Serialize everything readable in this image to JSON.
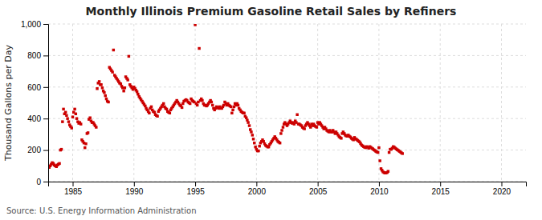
{
  "chart_data": {
    "type": "scatter",
    "title": "Monthly Illinois Premium Gasoline Retail Sales by Refiners",
    "ylabel": "Thousand Gallons per Day",
    "annotations": [
      "Source: U.S. Energy Information Administration"
    ],
    "color": "#cc0000",
    "marker": "square",
    "grid": true,
    "xlim": [
      1983,
      2022
    ],
    "ylim": [
      0,
      1000
    ],
    "xticks": [
      1985,
      1990,
      1995,
      2000,
      2005,
      2010,
      2015,
      2020
    ],
    "yticks": [
      0,
      200,
      400,
      600,
      800,
      {
        "value": 1000,
        "label": "1,000"
      }
    ],
    "x": [
      1983.08,
      1983.17,
      1983.25,
      1983.33,
      1983.42,
      1983.5,
      1983.58,
      1983.67,
      1983.75,
      1983.83,
      1983.92,
      1984.0,
      1984.08,
      1984.17,
      1984.25,
      1984.33,
      1984.42,
      1984.5,
      1984.58,
      1984.67,
      1984.75,
      1984.83,
      1984.92,
      1985.0,
      1985.08,
      1985.17,
      1985.25,
      1985.33,
      1985.42,
      1985.5,
      1985.58,
      1985.67,
      1985.75,
      1985.83,
      1985.92,
      1986.0,
      1986.08,
      1986.17,
      1986.25,
      1986.33,
      1986.42,
      1986.5,
      1986.58,
      1986.67,
      1986.75,
      1986.83,
      1986.92,
      1987.0,
      1987.08,
      1987.17,
      1987.25,
      1987.33,
      1987.42,
      1987.5,
      1987.58,
      1987.67,
      1987.75,
      1987.83,
      1987.92,
      1988.0,
      1988.08,
      1988.17,
      1988.25,
      1988.33,
      1988.42,
      1988.5,
      1988.58,
      1988.67,
      1988.75,
      1988.83,
      1988.92,
      1989.0,
      1989.08,
      1989.17,
      1989.25,
      1989.33,
      1989.42,
      1989.5,
      1989.58,
      1989.67,
      1989.75,
      1989.83,
      1989.92,
      1990.0,
      1990.08,
      1990.17,
      1990.25,
      1990.33,
      1990.42,
      1990.5,
      1990.58,
      1990.67,
      1990.75,
      1990.83,
      1990.92,
      1991.0,
      1991.08,
      1991.17,
      1991.25,
      1991.33,
      1991.42,
      1991.5,
      1991.58,
      1991.67,
      1991.75,
      1991.83,
      1991.92,
      1992.0,
      1992.08,
      1992.17,
      1992.25,
      1992.33,
      1992.42,
      1992.5,
      1992.58,
      1992.67,
      1992.75,
      1992.83,
      1992.92,
      1993.0,
      1993.08,
      1993.17,
      1993.25,
      1993.33,
      1993.42,
      1993.5,
      1993.58,
      1993.67,
      1993.75,
      1993.83,
      1993.92,
      1994.0,
      1994.08,
      1994.17,
      1994.25,
      1994.33,
      1994.42,
      1994.5,
      1994.58,
      1994.67,
      1994.75,
      1994.83,
      1994.92,
      1995.0,
      1995.08,
      1995.17,
      1995.25,
      1995.33,
      1995.42,
      1995.5,
      1995.58,
      1995.67,
      1995.75,
      1995.83,
      1995.92,
      1996.0,
      1996.08,
      1996.17,
      1996.25,
      1996.33,
      1996.42,
      1996.5,
      1996.58,
      1996.67,
      1996.75,
      1996.83,
      1996.92,
      1997.0,
      1997.08,
      1997.17,
      1997.25,
      1997.33,
      1997.42,
      1997.5,
      1997.58,
      1997.67,
      1997.75,
      1997.83,
      1997.92,
      1998.0,
      1998.08,
      1998.17,
      1998.25,
      1998.33,
      1998.42,
      1998.5,
      1998.58,
      1998.67,
      1998.75,
      1998.83,
      1998.92,
      1999.0,
      1999.08,
      1999.17,
      1999.25,
      1999.33,
      1999.42,
      1999.5,
      1999.58,
      1999.67,
      1999.75,
      1999.83,
      1999.92,
      2000.0,
      2000.08,
      2000.17,
      2000.25,
      2000.33,
      2000.42,
      2000.5,
      2000.58,
      2000.67,
      2000.75,
      2000.83,
      2000.92,
      2001.0,
      2001.08,
      2001.17,
      2001.25,
      2001.33,
      2001.42,
      2001.5,
      2001.58,
      2001.67,
      2001.75,
      2001.83,
      2001.92,
      2002.0,
      2002.08,
      2002.17,
      2002.25,
      2002.33,
      2002.42,
      2002.5,
      2002.58,
      2002.67,
      2002.75,
      2002.83,
      2002.92,
      2003.0,
      2003.08,
      2003.17,
      2003.25,
      2003.33,
      2003.42,
      2003.5,
      2003.58,
      2003.67,
      2003.75,
      2003.83,
      2003.92,
      2004.0,
      2004.08,
      2004.17,
      2004.25,
      2004.33,
      2004.42,
      2004.5,
      2004.58,
      2004.67,
      2004.75,
      2004.83,
      2004.92,
      2005.0,
      2005.08,
      2005.17,
      2005.25,
      2005.33,
      2005.42,
      2005.5,
      2005.58,
      2005.67,
      2005.75,
      2005.83,
      2005.92,
      2006.0,
      2006.08,
      2006.17,
      2006.25,
      2006.33,
      2006.42,
      2006.5,
      2006.58,
      2006.67,
      2006.75,
      2006.83,
      2006.92,
      2007.0,
      2007.08,
      2007.17,
      2007.25,
      2007.33,
      2007.42,
      2007.5,
      2007.58,
      2007.67,
      2007.75,
      2007.83,
      2007.92,
      2008.0,
      2008.08,
      2008.17,
      2008.25,
      2008.33,
      2008.42,
      2008.5,
      2008.58,
      2008.67,
      2008.75,
      2008.83,
      2008.92,
      2009.0,
      2009.08,
      2009.17,
      2009.25,
      2009.33,
      2009.42,
      2009.5,
      2009.58,
      2009.67,
      2009.75,
      2009.83,
      2009.92,
      2010.0,
      2010.08,
      2010.17,
      2010.25,
      2010.33,
      2010.42,
      2010.5,
      2010.58,
      2010.67,
      2010.75,
      2010.83,
      2010.92,
      2011.0,
      2011.08,
      2011.17,
      2011.25,
      2011.33,
      2011.42,
      2011.5,
      2011.58,
      2011.67,
      2011.75,
      2011.83,
      2011.92
    ],
    "values": [
      90,
      100,
      110,
      120,
      115,
      105,
      100,
      95,
      105,
      110,
      115,
      200,
      205,
      380,
      460,
      430,
      440,
      420,
      400,
      380,
      360,
      350,
      340,
      410,
      440,
      460,
      430,
      400,
      380,
      370,
      375,
      365,
      265,
      255,
      245,
      215,
      240,
      305,
      310,
      395,
      405,
      385,
      375,
      375,
      365,
      355,
      345,
      590,
      625,
      635,
      615,
      615,
      595,
      575,
      565,
      545,
      525,
      510,
      505,
      725,
      715,
      705,
      695,
      835,
      675,
      665,
      655,
      645,
      635,
      625,
      620,
      605,
      595,
      575,
      595,
      665,
      655,
      645,
      795,
      615,
      605,
      595,
      585,
      600,
      590,
      580,
      570,
      555,
      540,
      530,
      520,
      510,
      500,
      490,
      480,
      465,
      455,
      445,
      435,
      465,
      475,
      455,
      445,
      440,
      425,
      420,
      415,
      445,
      455,
      465,
      475,
      485,
      495,
      475,
      465,
      460,
      445,
      440,
      435,
      455,
      465,
      475,
      485,
      495,
      505,
      515,
      505,
      495,
      485,
      480,
      470,
      495,
      510,
      515,
      520,
      515,
      505,
      500,
      495,
      525,
      515,
      510,
      505,
      995,
      495,
      485,
      505,
      845,
      515,
      525,
      515,
      495,
      485,
      485,
      480,
      485,
      495,
      505,
      515,
      505,
      485,
      465,
      455,
      465,
      475,
      470,
      465,
      475,
      465,
      465,
      475,
      485,
      505,
      495,
      485,
      495,
      485,
      480,
      475,
      435,
      455,
      475,
      495,
      485,
      495,
      485,
      465,
      455,
      445,
      440,
      435,
      435,
      415,
      405,
      390,
      375,
      355,
      330,
      315,
      295,
      270,
      245,
      220,
      205,
      195,
      195,
      225,
      245,
      255,
      265,
      255,
      240,
      230,
      225,
      220,
      220,
      235,
      245,
      255,
      265,
      275,
      285,
      275,
      265,
      255,
      250,
      245,
      305,
      325,
      345,
      365,
      375,
      365,
      355,
      365,
      375,
      385,
      375,
      370,
      375,
      365,
      385,
      375,
      425,
      365,
      365,
      360,
      355,
      345,
      340,
      335,
      355,
      365,
      375,
      365,
      355,
      345,
      365,
      355,
      365,
      355,
      350,
      345,
      375,
      365,
      375,
      365,
      355,
      345,
      335,
      345,
      335,
      325,
      320,
      315,
      325,
      315,
      315,
      325,
      315,
      305,
      315,
      305,
      295,
      285,
      280,
      275,
      305,
      315,
      305,
      295,
      290,
      288,
      295,
      288,
      283,
      275,
      270,
      265,
      280,
      272,
      268,
      262,
      257,
      252,
      242,
      232,
      227,
      222,
      218,
      215,
      222,
      218,
      212,
      222,
      218,
      212,
      208,
      202,
      198,
      192,
      188,
      185,
      215,
      132,
      82,
      72,
      62,
      57,
      55,
      55,
      58,
      65,
      185,
      205,
      205,
      212,
      222,
      218,
      212,
      207,
      202,
      198,
      192,
      188,
      183,
      178
    ]
  }
}
